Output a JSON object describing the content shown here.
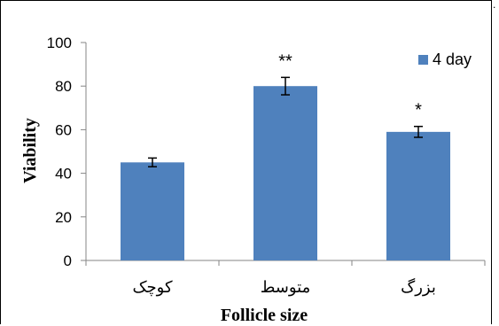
{
  "chart_data": {
    "type": "bar",
    "title": "",
    "xlabel": "Follicle size",
    "ylabel": "Viability",
    "categories": [
      "کوچک",
      "متوسط",
      "بزرگ"
    ],
    "series": [
      {
        "name": "4 day",
        "values": [
          45,
          80,
          59
        ],
        "errors": [
          2,
          4,
          2.5
        ],
        "annotations": [
          "",
          "**",
          "*"
        ]
      }
    ],
    "ylim": [
      0,
      100
    ],
    "yticks": [
      "0",
      "20",
      "40",
      "60",
      "80",
      "100"
    ],
    "grid": false,
    "legend": "top-right",
    "colors": {
      "bar": "#4F81BD",
      "axis": "#868686",
      "text": "#000000"
    },
    "corner_mark": "."
  }
}
